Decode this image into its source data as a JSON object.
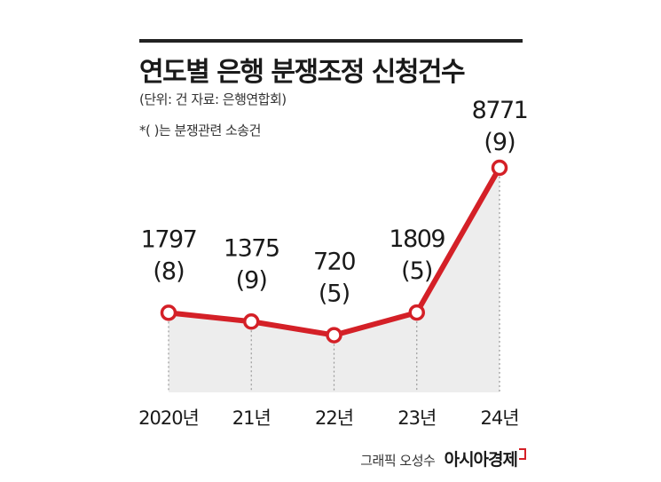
{
  "header": {
    "title": "연도별 은행 분쟁조정 신청건수",
    "subtitle": "(단위: 건 자료: 은행연합회)",
    "note": "*( )는 분쟁관련 소송건"
  },
  "credit": {
    "byline": "그래픽 오성수",
    "brand": "아시아경제"
  },
  "colors": {
    "line": "#d42027",
    "area": "#ededed",
    "marker_fill": "#ffffff",
    "text": "#222222"
  },
  "chart_data": {
    "type": "line",
    "categories": [
      "2020년",
      "21년",
      "22년",
      "23년",
      "24년"
    ],
    "series": [
      {
        "values": [
          1797,
          1375,
          720,
          1809,
          8771
        ]
      }
    ],
    "lawsuit_counts": [
      "(8)",
      "(9)",
      "(5)",
      "(5)",
      "(9)"
    ],
    "value_labels": [
      "1797",
      "1375",
      "720",
      "1809",
      "8771"
    ],
    "area_fill": true,
    "grid": false
  }
}
